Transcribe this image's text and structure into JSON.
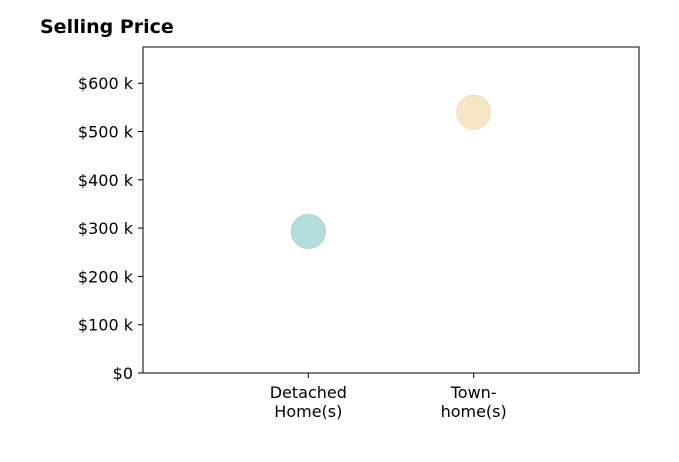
{
  "chart_data": {
    "type": "scatter",
    "title": "Selling Price",
    "xlabel": "",
    "ylabel": "",
    "categories": [
      [
        "Detached",
        "Home(s)"
      ],
      [
        "Town-",
        "home(s)"
      ]
    ],
    "points": [
      {
        "category_index": 0,
        "value": 293000,
        "color": "#b3dedb",
        "edge": "#a3d4d1"
      },
      {
        "category_index": 1,
        "value": 540000,
        "color": "#f7e6c6",
        "edge": "#f2dcb4"
      }
    ],
    "yticks": [
      0,
      100000,
      200000,
      300000,
      400000,
      500000,
      600000
    ],
    "ytick_labels": [
      "$0",
      "$100 k",
      "$200 k",
      "$300 k",
      "$400 k",
      "$500 k",
      "$600 k"
    ],
    "ylim": [
      0,
      675000
    ],
    "xlim": [
      0,
      3
    ],
    "grid": false,
    "legend": "none"
  }
}
